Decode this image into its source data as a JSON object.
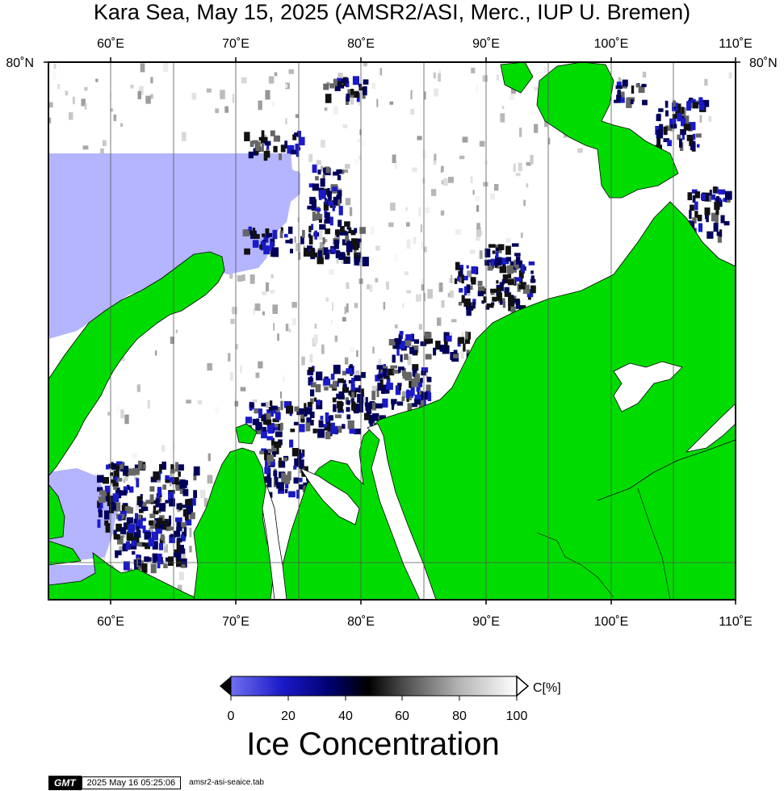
{
  "title": "Kara Sea, May 15, 2025 (AMSR2/ASI, Merc., IUP U. Bremen)",
  "axes": {
    "lon_ticks": [
      "60˚E",
      "70˚E",
      "80˚E",
      "90˚E",
      "100˚E",
      "110˚E"
    ],
    "lat_tick": "80˚N",
    "lon_range": [
      55,
      110
    ],
    "lat_top": 80
  },
  "colorbar": {
    "unit": "C[%]",
    "tick_labels": [
      "0",
      "20",
      "40",
      "60",
      "80",
      "100"
    ],
    "range": [
      0,
      100
    ],
    "title": "Ice Concentration"
  },
  "colors": {
    "land": "#00dc00",
    "open_water": "#b4b4ff",
    "ice_high": "#ffffff",
    "ice_mid": "#000000",
    "ice_low": "#00005a"
  },
  "footer": {
    "logo": "GMT",
    "timestamp": "2025 May 16 05:25:06",
    "file": "amsr2-asi-seaice.tab"
  }
}
